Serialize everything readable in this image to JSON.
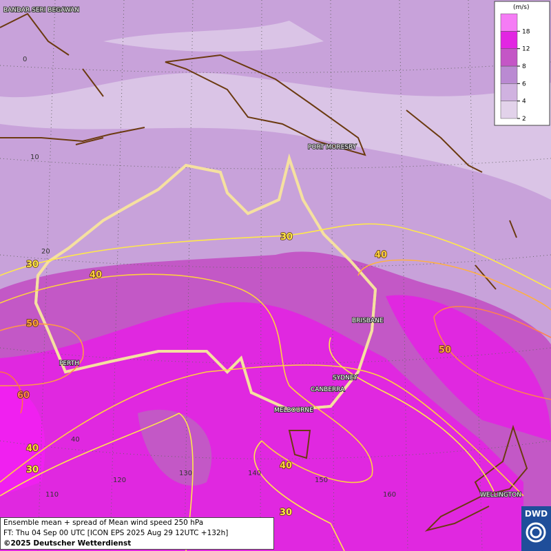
{
  "map": {
    "cities": [
      "BANDAR SERI BEGAWAN",
      "PORT MORESBY",
      "BRISBANE",
      "PERTH",
      "SYDNEY",
      "CANBERRA",
      "MELBOURNE",
      "WELLINGTON"
    ],
    "graticule_labels": [
      "0",
      "10",
      "20",
      "40",
      "110",
      "120",
      "130",
      "140",
      "150",
      "160"
    ],
    "contour_labels": [
      30,
      30,
      40,
      40,
      50,
      50,
      60,
      40,
      30,
      40,
      30
    ]
  },
  "legend": {
    "unit": "(m/s)",
    "ticks": [
      2,
      4,
      6,
      8,
      12,
      18
    ],
    "colors": [
      "#e2d2ea",
      "#d0b2e0",
      "#ba8ad2",
      "#c456c6",
      "#e226e2",
      "#f57cf5"
    ]
  },
  "footer": {
    "line1": "Ensemble mean + spread of Mean wind speed 250 hPa",
    "line2": "FT: Thu 04 Sep 00 UTC [ICON EPS 2025 Aug 29 12UTC +132h]",
    "line3": "©2025 Deutscher Wetterdienst"
  },
  "logo": "DWD"
}
